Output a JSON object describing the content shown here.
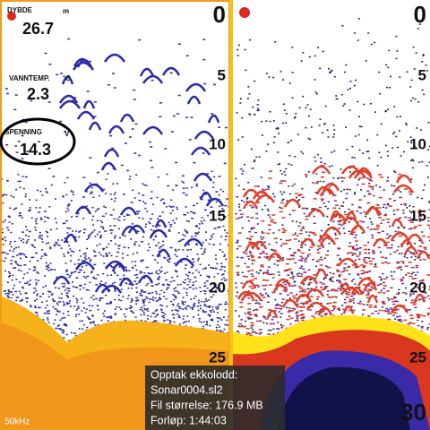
{
  "left_panel": {
    "readouts": [
      {
        "label": "DYBDE",
        "unit": "m",
        "value": "26.7"
      },
      {
        "label": "VANNTEMP.",
        "unit": "°C",
        "value": "2.3"
      },
      {
        "label": "SPENNING",
        "unit": "V",
        "value": "14.3"
      }
    ],
    "frequency": "50kHz",
    "depth_scale": [
      "0",
      "5",
      "10",
      "15",
      "20",
      "25"
    ]
  },
  "right_panel": {
    "depth_scale": [
      "0",
      "5",
      "10",
      "15",
      "20",
      "25",
      "30"
    ]
  },
  "recording_popup": {
    "title": "Opptak ekkolodd:",
    "file": "Sonar0004.sl2",
    "size": "Fil størrelse: 176.9 MB",
    "elapsed": "Forløp: 1:44:03"
  }
}
